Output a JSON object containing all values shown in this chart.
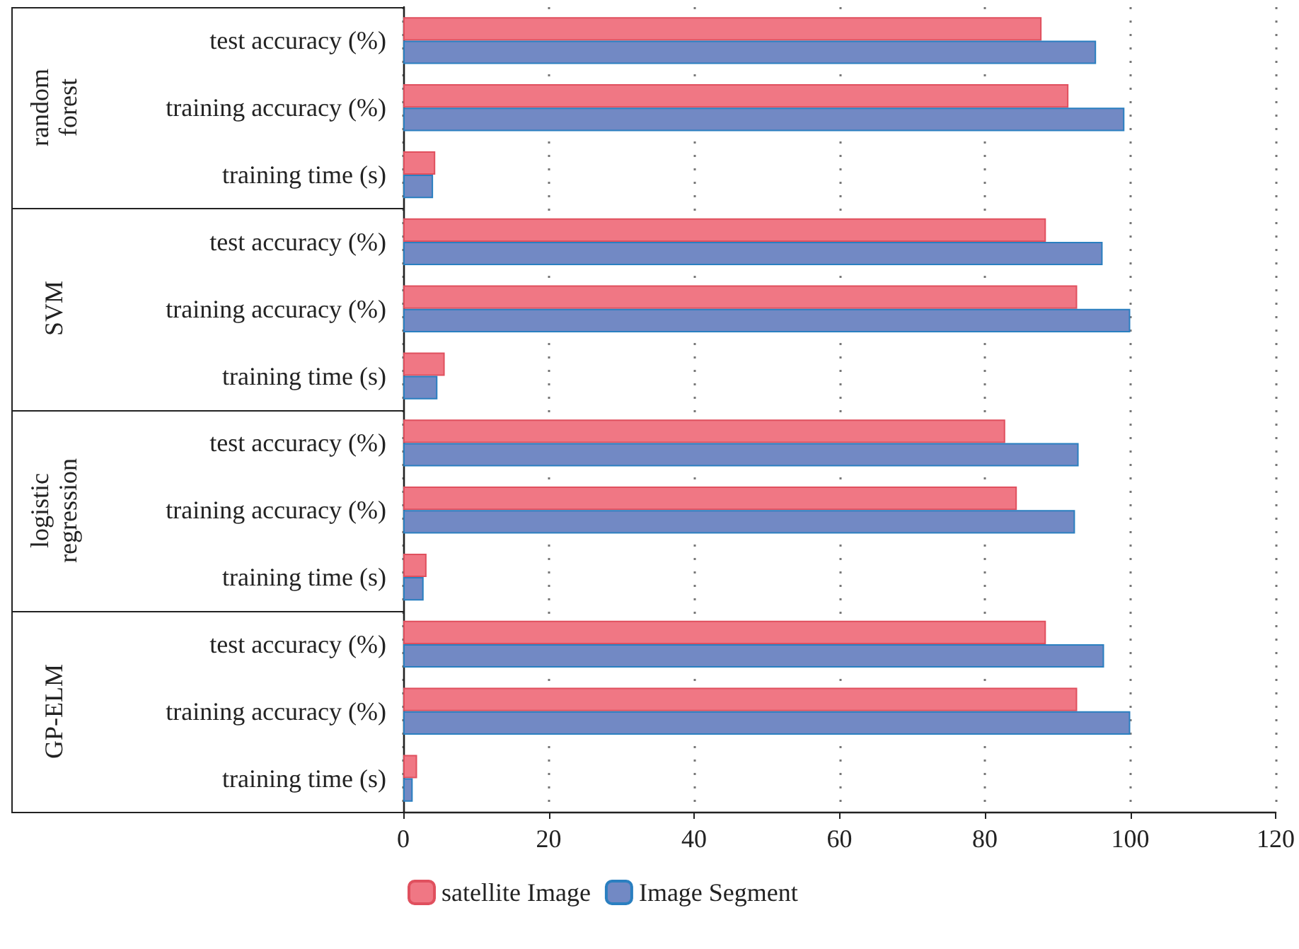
{
  "chart_data": {
    "type": "bar",
    "orientation": "horizontal",
    "categories": [
      "test accuracy (%)",
      "training accuracy (%)",
      "training time (s)",
      "test accuracy (%)",
      "training accuracy (%)",
      "training time (s)",
      "test accuracy (%)",
      "training accuracy (%)",
      "training time (s)",
      "test accuracy (%)",
      "training accuracy (%)",
      "training time (s)"
    ],
    "series": [
      {
        "name": "satellite Image",
        "color": "#f07784",
        "values": [
          87.8,
          91.5,
          4.4,
          88.4,
          92.7,
          5.7,
          82.8,
          84.4,
          3.2,
          88.4,
          92.7,
          1.9
        ]
      },
      {
        "name": "Image Segment",
        "color": "#7289c4",
        "values": [
          95.3,
          99.2,
          4.1,
          96.2,
          100,
          4.7,
          92.9,
          92.4,
          2.8,
          96.4,
          100,
          1.3
        ]
      }
    ],
    "annotations": [
      "random forest",
      "SVM",
      "logistic regression",
      "GP-ELM"
    ],
    "xlim": [
      0,
      120
    ],
    "xticks": [
      0,
      20,
      40,
      60,
      80,
      100,
      120
    ],
    "grid": "x",
    "legend": "bottom left"
  }
}
